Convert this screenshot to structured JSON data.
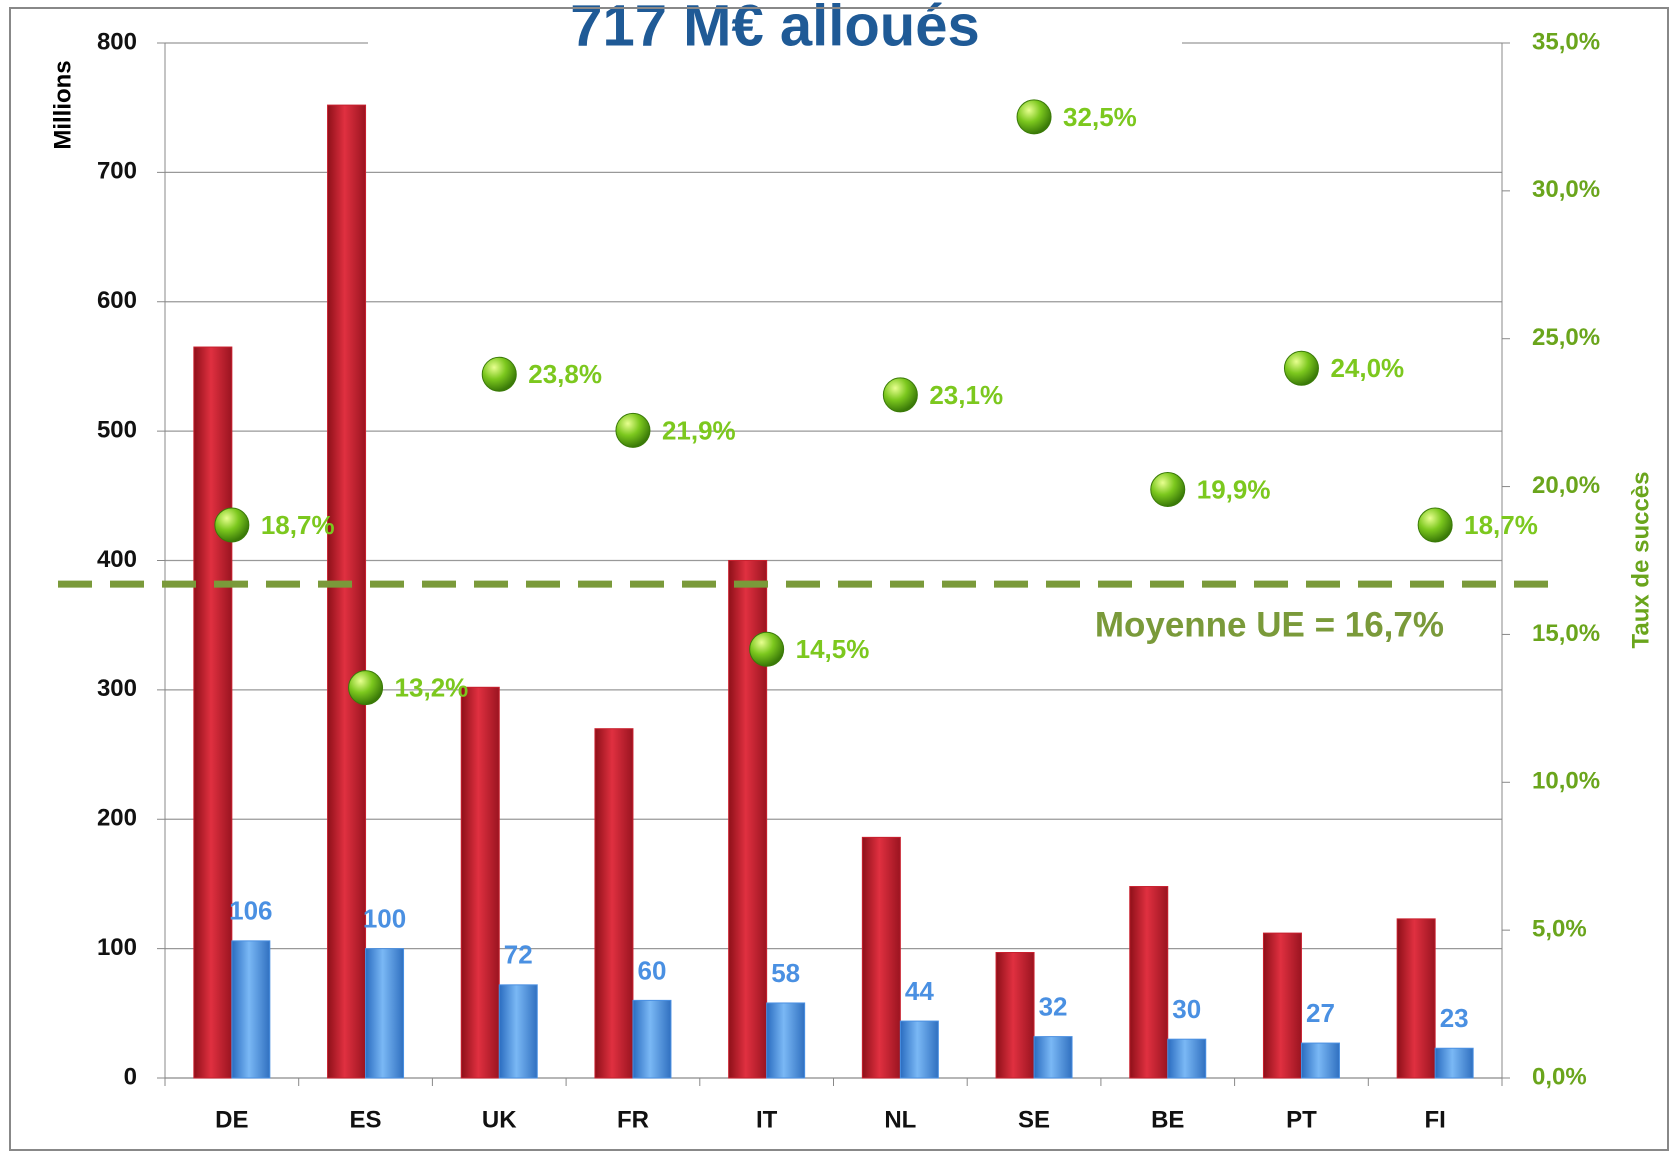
{
  "chart_data": {
    "type": "bar",
    "title": "717 M€ alloués",
    "ylabel": "Millions",
    "y2label": "Taux de succès",
    "categories": [
      "DE",
      "ES",
      "UK",
      "FR",
      "IT",
      "NL",
      "SE",
      "BE",
      "PT",
      "FI"
    ],
    "series": [
      {
        "color": "#c8202e",
        "values": [
          565,
          752,
          302,
          270,
          400,
          186,
          97,
          148,
          112,
          123
        ]
      },
      {
        "color": "#4a90e2",
        "values": [
          106,
          100,
          72,
          60,
          58,
          44,
          32,
          30,
          27,
          23
        ],
        "show_labels": true
      },
      {
        "type": "scatter",
        "axis": "y2",
        "color": "#7cc81e",
        "values": [
          18.7,
          13.2,
          23.8,
          21.9,
          14.5,
          23.1,
          32.5,
          19.9,
          24.0,
          18.7
        ],
        "value_labels": [
          "18,7%",
          "13,2%",
          "23,8%",
          "21,9%",
          "14,5%",
          "23,1%",
          "32,5%",
          "19,9%",
          "24,0%",
          "18,7%"
        ]
      }
    ],
    "average": {
      "value": 16.7,
      "label": "Moyenne UE = 16,7%",
      "color": "#7a9a3a",
      "axis": "y2"
    },
    "ylim": [
      0,
      800
    ],
    "yticks": [
      0,
      100,
      200,
      300,
      400,
      500,
      600,
      700,
      800
    ],
    "y2lim": [
      0,
      35
    ],
    "y2ticks": [
      {
        "value": 0,
        "label": "0,0%"
      },
      {
        "value": 5,
        "label": "5,0%"
      },
      {
        "value": 10,
        "label": "10,0%"
      },
      {
        "value": 15,
        "label": "15,0%"
      },
      {
        "value": 20,
        "label": "20,0%"
      },
      {
        "value": 25,
        "label": "25,0%"
      },
      {
        "value": 30,
        "label": "30,0%"
      },
      {
        "value": 35,
        "label": "35,0%"
      }
    ],
    "grid": true
  }
}
